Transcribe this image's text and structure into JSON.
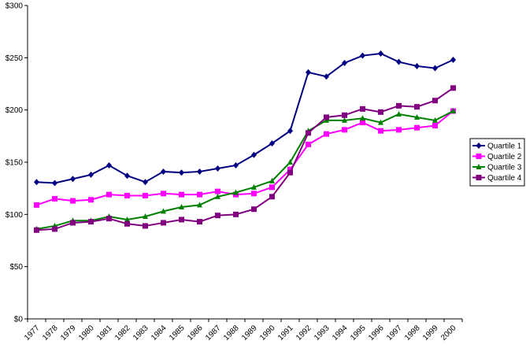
{
  "chart_data": {
    "type": "line",
    "categories": [
      "1977",
      "1978",
      "1979",
      "1980",
      "1981",
      "1982",
      "1983",
      "1984",
      "1985",
      "1986",
      "1987",
      "1988",
      "1989",
      "1990",
      "1991",
      "1992",
      "1993",
      "1994",
      "1995",
      "1996",
      "1997",
      "1998",
      "1999",
      "2000"
    ],
    "series": [
      {
        "name": "Quartile 1",
        "color": "#000080",
        "marker": "diamond",
        "values": [
          131,
          130,
          134,
          138,
          147,
          137,
          131,
          141,
          140,
          141,
          144,
          147,
          157,
          168,
          180,
          236,
          232,
          245,
          252,
          254,
          246,
          242,
          240,
          248
        ]
      },
      {
        "name": "Quartile 2",
        "color": "#ff00ff",
        "marker": "square",
        "values": [
          109,
          115,
          113,
          114,
          119,
          118,
          118,
          120,
          119,
          119,
          122,
          119,
          120,
          126,
          143,
          167,
          177,
          181,
          188,
          180,
          181,
          183,
          185,
          199
        ]
      },
      {
        "name": "Quartile 3",
        "color": "#008000",
        "marker": "triangle",
        "values": [
          86,
          89,
          94,
          94,
          98,
          95,
          98,
          103,
          107,
          109,
          117,
          121,
          126,
          132,
          150,
          180,
          190,
          190,
          192,
          188,
          196,
          193,
          190,
          199
        ]
      },
      {
        "name": "Quartile 4",
        "color": "#800080",
        "marker": "square",
        "values": [
          85,
          86,
          92,
          93,
          96,
          91,
          89,
          92,
          95,
          93,
          99,
          100,
          105,
          117,
          140,
          178,
          193,
          195,
          201,
          198,
          204,
          203,
          209,
          221
        ]
      }
    ],
    "ylim": [
      0,
      300
    ],
    "yticks": [
      {
        "value": 0,
        "label": "$0"
      },
      {
        "value": 50,
        "label": "$50"
      },
      {
        "value": 100,
        "label": "$100"
      },
      {
        "value": 150,
        "label": "$150"
      },
      {
        "value": 200,
        "label": "$200"
      },
      {
        "value": 250,
        "label": "$250"
      },
      {
        "value": 300,
        "label": "$300"
      }
    ],
    "grid": false,
    "legend": "right"
  }
}
